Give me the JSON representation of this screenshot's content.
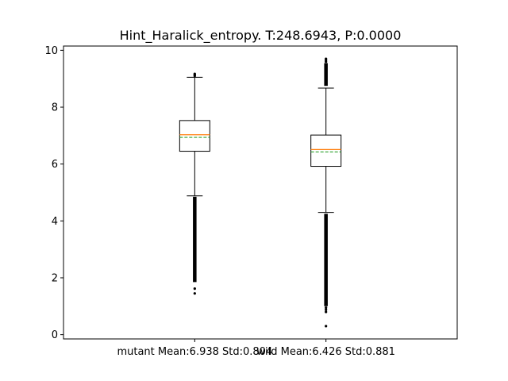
{
  "chart_data": {
    "type": "box",
    "title": "Hint_Haralick_entropy. T:248.6943, P:0.0000",
    "xlabel": "",
    "ylabel": "",
    "ylim": [
      -0.15,
      10.15
    ],
    "yticks": [
      0,
      2,
      4,
      6,
      8,
      10
    ],
    "grid": false,
    "categories": [
      "mutant Mean:6.938 Std:0.804",
      "wild Mean:6.426 Std:0.881"
    ],
    "boxes": [
      {
        "q1": 6.45,
        "median": 7.03,
        "mean": 6.938,
        "q3": 7.53,
        "whisker_low": 4.88,
        "whisker_high": 9.05,
        "outliers_low_range": [
          1.85,
          4.85
        ],
        "outliers_low_extra": [
          1.62,
          1.45
        ],
        "outliers_high": [
          9.1,
          9.14,
          9.17
        ]
      },
      {
        "q1": 5.92,
        "median": 6.51,
        "mean": 6.426,
        "q3": 7.02,
        "whisker_low": 4.3,
        "whisker_high": 8.67,
        "outliers_low_range": [
          1.0,
          4.25
        ],
        "outliers_low_extra": [
          0.95,
          0.88,
          0.8,
          0.3
        ],
        "outliers_high_range": [
          8.75,
          9.55
        ],
        "outliers_high": [
          9.6,
          9.65,
          9.7
        ]
      }
    ],
    "colors": {
      "median": "#ff7f0e",
      "mean": "#2ca02c",
      "box": "#000000"
    }
  }
}
